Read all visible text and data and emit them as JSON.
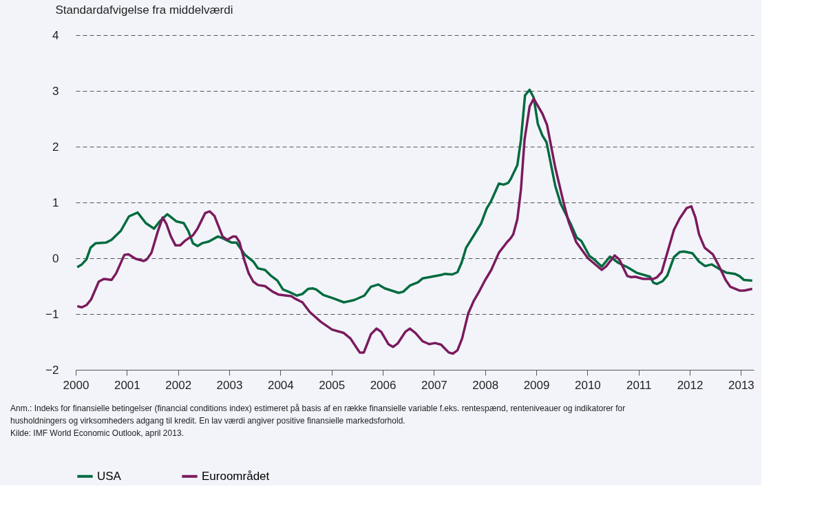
{
  "chart_data": {
    "type": "line",
    "ylabel": "Standardafvigelse fra middelværdi",
    "xlim": [
      2000,
      2013.25
    ],
    "xticks": [
      2000,
      2001,
      2002,
      2003,
      2004,
      2005,
      2006,
      2007,
      2008,
      2009,
      2010,
      2011,
      2012,
      2013
    ],
    "ylim": [
      -2,
      4
    ],
    "yticks": [
      -2,
      -1,
      0,
      1,
      2,
      3,
      4
    ],
    "grid": "y",
    "legend": "bottom",
    "line_style": "solid",
    "marker": "none",
    "series": [
      {
        "name": "USA",
        "color": "#006b3f",
        "x": [
          2000.03,
          2000.12,
          2000.21,
          2000.29,
          2000.39,
          2000.59,
          2000.7,
          2000.88,
          2001.04,
          2001.21,
          2001.37,
          2001.53,
          2001.64,
          2001.79,
          2001.97,
          2002.11,
          2002.2,
          2002.29,
          2002.38,
          2002.47,
          2002.6,
          2002.78,
          2002.87,
          2003.05,
          2003.14,
          2003.31,
          2003.47,
          2003.56,
          2003.7,
          2003.81,
          2003.94,
          2004.05,
          2004.21,
          2004.32,
          2004.43,
          2004.54,
          2004.63,
          2004.7,
          2004.84,
          2005.04,
          2005.24,
          2005.44,
          2005.64,
          2005.77,
          2005.91,
          2006.04,
          2006.31,
          2006.4,
          2006.53,
          2006.69,
          2006.78,
          2007.14,
          2007.21,
          2007.36,
          2007.46,
          2007.54,
          2007.63,
          2007.78,
          2007.92,
          2008.03,
          2008.12,
          2008.27,
          2008.36,
          2008.45,
          2008.5,
          2008.63,
          2008.7,
          2008.78,
          2008.87,
          2008.95,
          2009.03,
          2009.12,
          2009.2,
          2009.37,
          2009.48,
          2009.68,
          2009.79,
          2009.88,
          2010.04,
          2010.13,
          2010.28,
          2010.44,
          2010.6,
          2010.78,
          2010.96,
          2011.22,
          2011.29,
          2011.36,
          2011.47,
          2011.56,
          2011.69,
          2011.8,
          2011.89,
          2012.05,
          2012.18,
          2012.3,
          2012.43,
          2012.61,
          2012.72,
          2012.88,
          2012.97,
          2013.06,
          2013.22
        ],
        "values": [
          -0.16,
          -0.11,
          -0.02,
          0.19,
          0.27,
          0.28,
          0.33,
          0.49,
          0.75,
          0.82,
          0.63,
          0.53,
          0.66,
          0.79,
          0.66,
          0.63,
          0.49,
          0.27,
          0.22,
          0.27,
          0.3,
          0.39,
          0.36,
          0.28,
          0.28,
          0.06,
          -0.06,
          -0.18,
          -0.21,
          -0.31,
          -0.4,
          -0.56,
          -0.62,
          -0.67,
          -0.64,
          -0.55,
          -0.54,
          -0.56,
          -0.66,
          -0.72,
          -0.79,
          -0.75,
          -0.67,
          -0.51,
          -0.47,
          -0.54,
          -0.62,
          -0.6,
          -0.49,
          -0.43,
          -0.36,
          -0.3,
          -0.28,
          -0.29,
          -0.25,
          -0.08,
          0.19,
          0.41,
          0.62,
          0.89,
          1.03,
          1.34,
          1.32,
          1.35,
          1.42,
          1.67,
          2.12,
          2.92,
          3.02,
          2.88,
          2.41,
          2.2,
          2.08,
          1.3,
          0.97,
          0.6,
          0.37,
          0.31,
          0.04,
          -0.02,
          -0.15,
          0.03,
          -0.08,
          -0.16,
          -0.26,
          -0.33,
          -0.44,
          -0.46,
          -0.41,
          -0.31,
          0.02,
          0.11,
          0.12,
          0.09,
          -0.06,
          -0.14,
          -0.11,
          -0.21,
          -0.26,
          -0.28,
          -0.32,
          -0.39,
          -0.4
        ]
      },
      {
        "name": "Euroområdet",
        "color": "#7b1a5e",
        "x": [
          2000.03,
          2000.12,
          2000.21,
          2000.3,
          2000.45,
          2000.55,
          2000.7,
          2000.79,
          2000.95,
          2001.03,
          2001.17,
          2001.33,
          2001.39,
          2001.48,
          2001.6,
          2001.7,
          2001.77,
          2001.86,
          2001.95,
          2002.04,
          2002.13,
          2002.29,
          2002.38,
          2002.53,
          2002.62,
          2002.71,
          2002.87,
          2002.96,
          2003.07,
          2003.13,
          2003.2,
          2003.29,
          2003.38,
          2003.47,
          2003.56,
          2003.7,
          2003.85,
          2003.96,
          2004.12,
          2004.21,
          2004.3,
          2004.43,
          2004.57,
          2004.79,
          2005.01,
          2005.24,
          2005.37,
          2005.55,
          2005.63,
          2005.77,
          2005.88,
          2005.97,
          2006.11,
          2006.2,
          2006.29,
          2006.44,
          2006.53,
          2006.64,
          2006.78,
          2006.91,
          2007.02,
          2007.14,
          2007.29,
          2007.37,
          2007.46,
          2007.55,
          2007.67,
          2007.78,
          2007.87,
          2007.99,
          2008.12,
          2008.27,
          2008.43,
          2008.5,
          2008.55,
          2008.63,
          2008.7,
          2008.77,
          2008.87,
          2008.95,
          2009.12,
          2009.21,
          2009.37,
          2009.53,
          2009.63,
          2009.78,
          2010.01,
          2010.28,
          2010.37,
          2010.53,
          2010.62,
          2010.78,
          2010.86,
          2010.93,
          2011.09,
          2011.29,
          2011.36,
          2011.45,
          2011.58,
          2011.69,
          2011.8,
          2011.94,
          2012.03,
          2012.11,
          2012.18,
          2012.29,
          2012.45,
          2012.56,
          2012.7,
          2012.79,
          2012.97,
          2013.06,
          2013.22
        ],
        "values": [
          -0.86,
          -0.88,
          -0.84,
          -0.74,
          -0.42,
          -0.37,
          -0.39,
          -0.27,
          0.06,
          0.07,
          -0.01,
          -0.05,
          -0.02,
          0.1,
          0.47,
          0.73,
          0.62,
          0.39,
          0.23,
          0.23,
          0.31,
          0.41,
          0.53,
          0.81,
          0.84,
          0.76,
          0.39,
          0.33,
          0.39,
          0.39,
          0.29,
          -0.02,
          -0.27,
          -0.42,
          -0.48,
          -0.5,
          -0.6,
          -0.65,
          -0.67,
          -0.68,
          -0.73,
          -0.79,
          -0.96,
          -1.14,
          -1.28,
          -1.34,
          -1.44,
          -1.69,
          -1.69,
          -1.36,
          -1.26,
          -1.32,
          -1.54,
          -1.59,
          -1.53,
          -1.32,
          -1.26,
          -1.34,
          -1.49,
          -1.54,
          -1.52,
          -1.55,
          -1.69,
          -1.71,
          -1.65,
          -1.44,
          -0.99,
          -0.76,
          -0.62,
          -0.41,
          -0.21,
          0.1,
          0.29,
          0.36,
          0.43,
          0.7,
          1.23,
          2.12,
          2.72,
          2.86,
          2.59,
          2.39,
          1.63,
          1.01,
          0.66,
          0.29,
          0.0,
          -0.21,
          -0.14,
          0.05,
          -0.02,
          -0.32,
          -0.34,
          -0.33,
          -0.37,
          -0.37,
          -0.34,
          -0.25,
          0.16,
          0.51,
          0.71,
          0.9,
          0.93,
          0.73,
          0.43,
          0.19,
          0.07,
          -0.12,
          -0.39,
          -0.51,
          -0.58,
          -0.58,
          -0.55
        ]
      }
    ],
    "annotations": [
      "Anm.:  Indeks for finansielle betingelser (financial conditions index) estimeret på basis af en række finansielle variable f.eks. rentespænd, renteniveauer og indikatorer for husholdningers og virksomheders adgang til kredit. En lav værdi angiver positive finansielle markedsforhold.",
      "Kilde:  IMF World Economic Outlook, april 2013."
    ]
  }
}
